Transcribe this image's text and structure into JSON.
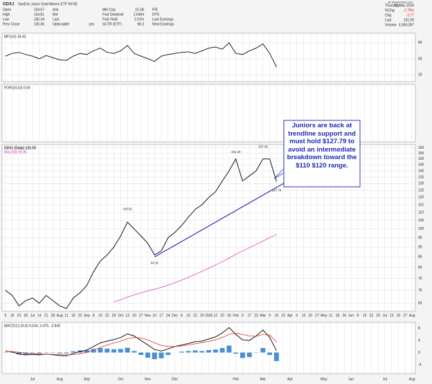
{
  "header": {
    "symbol": "GDXJ",
    "name": "VanEck Junior Gold Miners ETF NYSE",
    "credit": "@ StockCharts.com",
    "fields": [
      [
        "Open",
        "134.67"
      ],
      [
        "High",
        "134.81"
      ],
      [
        "Low",
        "130.34"
      ],
      [
        "Prev Close",
        "135.36"
      ],
      [
        "Ask",
        ""
      ],
      [
        "Bid",
        ""
      ],
      [
        "Last",
        ""
      ],
      [
        "Optionable",
        "yes"
      ],
      [
        "Mkt Cap",
        "10.1B"
      ],
      [
        "Fwd Dividend",
        "2.6484"
      ],
      [
        "Fwd Yield",
        "2.01%"
      ],
      [
        "SCTR (ETF)",
        "98.3"
      ],
      [
        "P/E",
        ""
      ],
      [
        "EPS",
        ""
      ],
      [
        "Last Earnings",
        ""
      ],
      [
        "Next Earnings",
        ""
      ]
    ],
    "right": [
      [
        "Thursday",
        "12-Mar-2026"
      ],
      [
        "%Chg",
        "-2.79%"
      ],
      [
        "Chg",
        "-3.77"
      ],
      [
        "Last",
        "131.59"
      ],
      [
        "Volume",
        "3,369,287"
      ]
    ]
  },
  "chart_data": [
    {
      "type": "line",
      "title": "MFI(14) 34.43",
      "ylim": [
        7,
        98
      ],
      "yticks": [
        20,
        50,
        80
      ],
      "grid": true,
      "series": [
        {
          "name": "MFI(14)",
          "color": "#222222",
          "values": [
            55,
            60,
            62,
            58,
            55,
            50,
            56,
            52,
            48,
            47,
            55,
            60,
            58,
            65,
            70,
            62,
            60,
            65,
            75,
            60,
            55,
            50,
            45,
            55,
            58,
            60,
            62,
            63,
            60,
            65,
            70,
            72,
            68,
            80,
            60,
            58,
            65,
            70,
            78,
            60,
            34.43
          ]
        }
      ]
    },
    {
      "type": "line",
      "title": "FORCE(13) 0.00",
      "series": []
    },
    {
      "type": "line",
      "title": "GDXJ (Daily) 131.59",
      "log_scale": true,
      "ylim": [
        62,
        163
      ],
      "grid": true,
      "yticks": [
        65,
        70,
        75,
        80,
        85,
        90,
        95,
        100,
        105,
        110,
        115,
        120,
        125,
        130,
        135,
        140,
        145,
        150,
        155,
        160
      ],
      "x": [
        0,
        1,
        2,
        3,
        4,
        5,
        6,
        7,
        8,
        9,
        10,
        11,
        12,
        13,
        14,
        15,
        16,
        17,
        18,
        19,
        20,
        21,
        22,
        23,
        24,
        25,
        26,
        27,
        28,
        29,
        30,
        31,
        32,
        33,
        34,
        35,
        36,
        37,
        38,
        39,
        40
      ],
      "xlim": [
        -0.5,
        60.5
      ],
      "xticks": [
        {
          "value": 0,
          "label": "9"
        },
        {
          "value": 1,
          "label": "16"
        },
        {
          "value": 2,
          "label": "23"
        },
        {
          "value": 3,
          "label": "30"
        },
        {
          "value": 4,
          "label": "Jul"
        },
        {
          "value": 5,
          "label": "14"
        },
        {
          "value": 6,
          "label": "21"
        },
        {
          "value": 7,
          "label": "28"
        },
        {
          "value": 8,
          "label": "Aug"
        },
        {
          "value": 9,
          "label": "11"
        },
        {
          "value": 10,
          "label": "18"
        },
        {
          "value": 11,
          "label": "25"
        },
        {
          "value": 12,
          "label": "Sep"
        },
        {
          "value": 13,
          "label": "8"
        },
        {
          "value": 14,
          "label": "15"
        },
        {
          "value": 15,
          "label": "22"
        },
        {
          "value": 16,
          "label": "29"
        },
        {
          "value": 17,
          "label": "Oct"
        },
        {
          "value": 18,
          "label": "13"
        },
        {
          "value": 19,
          "label": "20"
        },
        {
          "value": 20,
          "label": "27"
        },
        {
          "value": 21,
          "label": "Nov"
        },
        {
          "value": 22,
          "label": "10"
        },
        {
          "value": 23,
          "label": "17"
        },
        {
          "value": 24,
          "label": "24"
        },
        {
          "value": 25,
          "label": "Dec"
        },
        {
          "value": 26,
          "label": "8"
        },
        {
          "value": 27,
          "label": "15"
        },
        {
          "value": 28,
          "label": "22"
        },
        {
          "value": 29,
          "label": "29"
        },
        {
          "value": 30,
          "label": "2026"
        },
        {
          "value": 31,
          "label": "12"
        },
        {
          "value": 32,
          "label": "20"
        },
        {
          "value": 33,
          "label": "26"
        },
        {
          "value": 34,
          "label": "Feb"
        },
        {
          "value": 35,
          "label": "9"
        },
        {
          "value": 36,
          "label": "17"
        },
        {
          "value": 37,
          "label": "23"
        },
        {
          "value": 38,
          "label": "Mar"
        },
        {
          "value": 39,
          "label": "9"
        },
        {
          "value": 40,
          "label": "16"
        },
        {
          "value": 41,
          "label": "23"
        },
        {
          "value": 42,
          "label": "Apr"
        },
        {
          "value": 43,
          "label": "6"
        },
        {
          "value": 44,
          "label": "13"
        },
        {
          "value": 45,
          "label": "20"
        },
        {
          "value": 46,
          "label": "27"
        },
        {
          "value": 47,
          "label": "May"
        },
        {
          "value": 48,
          "label": "11"
        },
        {
          "value": 49,
          "label": "18"
        },
        {
          "value": 50,
          "label": "26"
        },
        {
          "value": 51,
          "label": "Jun"
        },
        {
          "value": 52,
          "label": "8"
        },
        {
          "value": 53,
          "label": "15"
        },
        {
          "value": 54,
          "label": "22"
        },
        {
          "value": 55,
          "label": "29"
        },
        {
          "value": 56,
          "label": "Jul"
        },
        {
          "value": 57,
          "label": "13"
        },
        {
          "value": 58,
          "label": "20"
        },
        {
          "value": 59,
          "label": "27"
        },
        {
          "value": 60,
          "label": "Aug"
        }
      ],
      "series": [
        {
          "name": "GDXJ (Daily) 131.59",
          "color": "#111111",
          "values": [
            70,
            68,
            64,
            66,
            67,
            65,
            68,
            66,
            64,
            63,
            67,
            69,
            72,
            78,
            83,
            86,
            90,
            96,
            104,
            100,
            96,
            92,
            86,
            88,
            95,
            98,
            102,
            107,
            112,
            115,
            120,
            124,
            132,
            140,
            150,
            132,
            136,
            140,
            150,
            150,
            131.59
          ]
        },
        {
          "name": "MA(200) 96.85",
          "color": "#e040c0",
          "values": [
            null,
            null,
            null,
            null,
            null,
            null,
            null,
            null,
            null,
            null,
            null,
            null,
            null,
            null,
            null,
            null,
            65.5,
            66.3,
            67.3,
            68.2,
            69,
            69.8,
            70.5,
            71.3,
            72.2,
            73.2,
            74.3,
            75.5,
            76.8,
            78.2,
            79.6,
            81.1,
            82.7,
            84.4,
            86.3,
            88,
            89.7,
            91.4,
            93.2,
            95,
            96.85
          ]
        }
      ],
      "trendline": {
        "color": "#2a2ab8",
        "x": [
          22,
          42
        ],
        "y": [
          85,
          133
        ]
      },
      "annotations": [
        {
          "text": "109.92",
          "x": 18,
          "y": 112
        },
        {
          "text": "84.35",
          "x": 22,
          "y": 82
        },
        {
          "text": "152.29",
          "x": 34,
          "y": 156
        },
        {
          "text": "157.45",
          "x": 38,
          "y": 161
        },
        {
          "text": "127.79",
          "x": 40,
          "y": 125
        }
      ],
      "callout": "Juniors are back at trendline support and must hold $127.79 to avoid an intermediate breakdown toward the $110  $120 range."
    },
    {
      "type": "macd",
      "title": "MACD(12,26,9) 0.634, 3.475, -2.840",
      "ylim": [
        -7,
        10
      ],
      "yticks": [
        -4,
        0,
        4,
        8
      ],
      "series": [
        {
          "name": "MACD",
          "color": "#111111",
          "values": [
            0.5,
            0.2,
            -0.5,
            -0.8,
            -0.6,
            -0.8,
            -0.5,
            -0.7,
            -1.0,
            -1.1,
            -0.3,
            0.3,
            0.8,
            2.0,
            3.2,
            3.8,
            4.3,
            5.0,
            6.2,
            5.5,
            4.0,
            2.5,
            1.0,
            0.5,
            1.2,
            2.0,
            2.5,
            3.0,
            3.6,
            3.8,
            4.5,
            5.2,
            6.5,
            8.3,
            6.0,
            4.2,
            4.0,
            5.5,
            7.5,
            5.0,
            0.634
          ]
        },
        {
          "name": "Signal",
          "color": "#e03020",
          "values": [
            0.4,
            0.3,
            0.1,
            -0.2,
            -0.4,
            -0.5,
            -0.6,
            -0.6,
            -0.7,
            -0.8,
            -0.7,
            -0.4,
            0,
            0.8,
            1.7,
            2.5,
            3.2,
            3.8,
            4.6,
            5.0,
            4.8,
            4.2,
            3.2,
            2.4,
            2.0,
            2.0,
            2.2,
            2.5,
            2.9,
            3.3,
            3.7,
            4.2,
            5.0,
            6.0,
            6.4,
            6.0,
            5.5,
            5.4,
            6.0,
            5.8,
            3.475
          ]
        },
        {
          "name": "Histogram",
          "color": "#4a90d0",
          "values": [
            0.1,
            -0.1,
            -0.6,
            -0.6,
            -0.2,
            -0.3,
            0.1,
            -0.1,
            -0.3,
            -0.3,
            0.4,
            0.7,
            0.8,
            1.2,
            1.5,
            1.3,
            1.1,
            1.2,
            1.6,
            0.5,
            -0.8,
            -1.7,
            -2.2,
            -1.9,
            -0.8,
            0,
            0.3,
            0.5,
            0.7,
            0.5,
            0.8,
            1.0,
            1.5,
            2.3,
            -0.4,
            -1.8,
            -1.5,
            0.1,
            1.5,
            -0.8,
            -2.84
          ]
        }
      ]
    }
  ]
}
